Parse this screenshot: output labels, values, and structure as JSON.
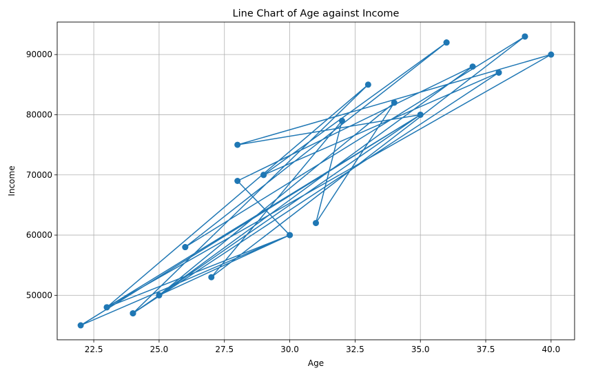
{
  "chart_data": {
    "type": "line",
    "title": "Line Chart of Age against Income",
    "xlabel": "Age",
    "ylabel": "Income",
    "xlim": [
      21.1,
      40.9
    ],
    "ylim": [
      42600,
      95400
    ],
    "xticks": [
      22.5,
      25.0,
      27.5,
      30.0,
      32.5,
      35.0,
      37.5,
      40.0
    ],
    "xtick_labels": [
      "22.5",
      "25.0",
      "27.5",
      "30.0",
      "32.5",
      "35.0",
      "37.5",
      "40.0"
    ],
    "yticks": [
      50000,
      60000,
      70000,
      80000,
      90000
    ],
    "ytick_labels": [
      "50000",
      "60000",
      "70000",
      "80000",
      "90000"
    ],
    "grid": true,
    "marker": "circle",
    "color": "#1f77b4",
    "series": [
      {
        "x": [
          25,
          30,
          22,
          35,
          28,
          40,
          23,
          33,
          24,
          38,
          29,
          36,
          26,
          39,
          27,
          32,
          31,
          34,
          25,
          37,
          28,
          30,
          23,
          35,
          24,
          38,
          29,
          36,
          26,
          39
        ],
        "y": [
          50000,
          60000,
          45000,
          80000,
          75000,
          90000,
          48000,
          85000,
          47000,
          87000,
          70000,
          92000,
          58000,
          93000,
          53000,
          79000,
          62000,
          82000,
          50000,
          88000,
          69000,
          60000,
          48000,
          80000,
          47000,
          87000,
          70000,
          92000,
          58000,
          93000
        ]
      }
    ]
  }
}
